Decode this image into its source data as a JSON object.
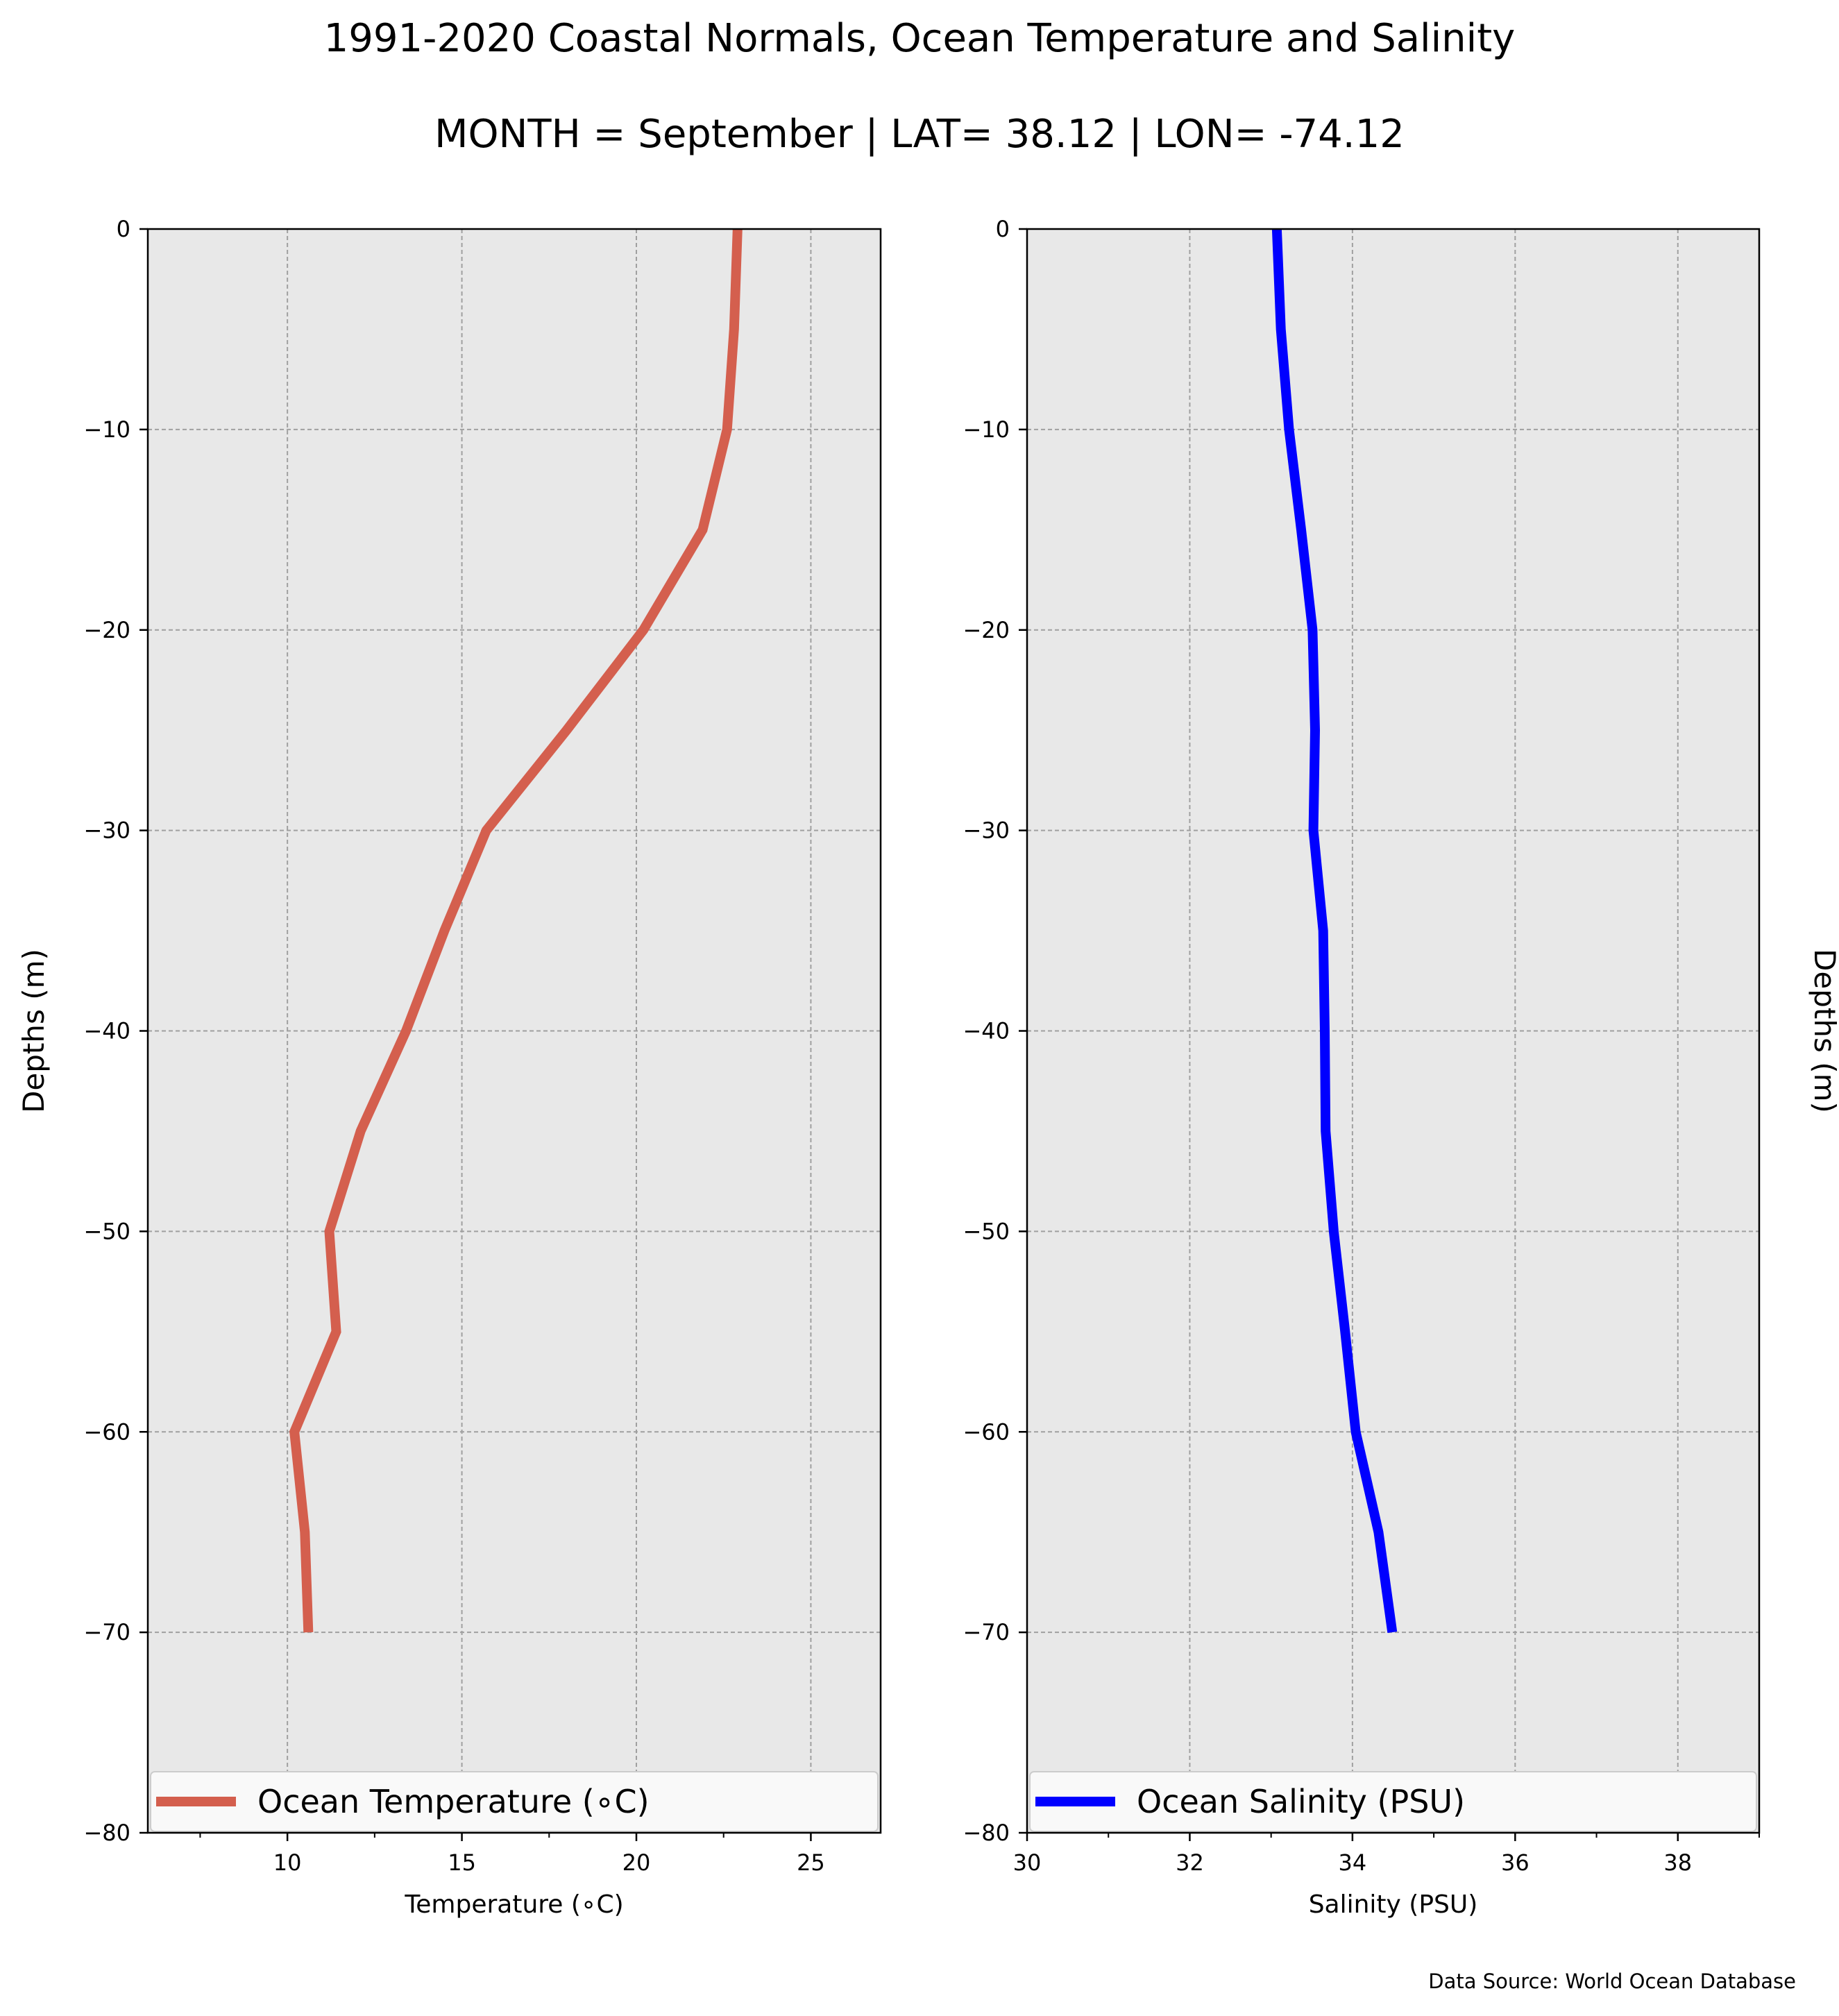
{
  "figure": {
    "title_line1": "1991-2020 Coastal Normals, Ocean Temperature and Salinity",
    "title_line2": "MONTH = September | LAT= 38.12 | LON= -74.12",
    "source_note": "Data Source: World Ocean Database",
    "background_color": "#ffffff",
    "plot_background_color": "#e8e8e8"
  },
  "chart_data": [
    {
      "type": "line",
      "xlabel": "Temperature (∘C)",
      "ylabel": "Depths (m)",
      "ylabel_side": "left",
      "xlim": [
        6,
        27
      ],
      "ylim": [
        -80,
        0
      ],
      "xticks": [
        10,
        15,
        20,
        25
      ],
      "xtick_labels": [
        "10",
        "15",
        "20",
        "25"
      ],
      "minor_xticks": [
        7.5,
        12.5,
        17.5,
        22.5
      ],
      "yticks": [
        0,
        -10,
        -20,
        -30,
        -40,
        -50,
        -60,
        -70,
        -80
      ],
      "ytick_labels": [
        "0",
        "−10",
        "−20",
        "−30",
        "−40",
        "−50",
        "−60",
        "−70",
        "−80"
      ],
      "grid": true,
      "legend_position": "bottom",
      "series": [
        {
          "name": "Ocean Temperature (∘C)",
          "color": "#d45f4e",
          "x": [
            22.9,
            22.8,
            22.6,
            21.9,
            20.2,
            18.0,
            15.7,
            14.5,
            13.4,
            12.1,
            11.2,
            11.4,
            10.2,
            10.5,
            10.6
          ],
          "y": [
            0,
            -5,
            -10,
            -15,
            -20,
            -25,
            -30,
            -35,
            -40,
            -45,
            -50,
            -55,
            -60,
            -65,
            -70
          ]
        }
      ]
    },
    {
      "type": "line",
      "xlabel": "Salinity (PSU)",
      "ylabel": "Depths (m)",
      "ylabel_side": "right",
      "xlim": [
        30,
        39
      ],
      "ylim": [
        -80,
        0
      ],
      "xticks": [
        30,
        32,
        34,
        36,
        38
      ],
      "xtick_labels": [
        "30",
        "32",
        "34",
        "36",
        "38"
      ],
      "minor_xticks": [
        31,
        33,
        35,
        37,
        39
      ],
      "yticks": [
        0,
        -10,
        -20,
        -30,
        -40,
        -50,
        -60,
        -70,
        -80
      ],
      "ytick_labels": [
        "0",
        "−10",
        "−20",
        "−30",
        "−40",
        "−50",
        "−60",
        "−70",
        "−80"
      ],
      "grid": true,
      "legend_position": "bottom",
      "series": [
        {
          "name": "Ocean Salinity (PSU)",
          "color": "#0000ff",
          "x": [
            33.07,
            33.12,
            33.22,
            33.37,
            33.51,
            33.54,
            33.52,
            33.64,
            33.66,
            33.67,
            33.77,
            33.91,
            34.04,
            34.32,
            34.49
          ],
          "y": [
            0,
            -5,
            -10,
            -15,
            -20,
            -25,
            -30,
            -35,
            -40,
            -45,
            -50,
            -55,
            -60,
            -65,
            -70
          ]
        }
      ]
    }
  ]
}
